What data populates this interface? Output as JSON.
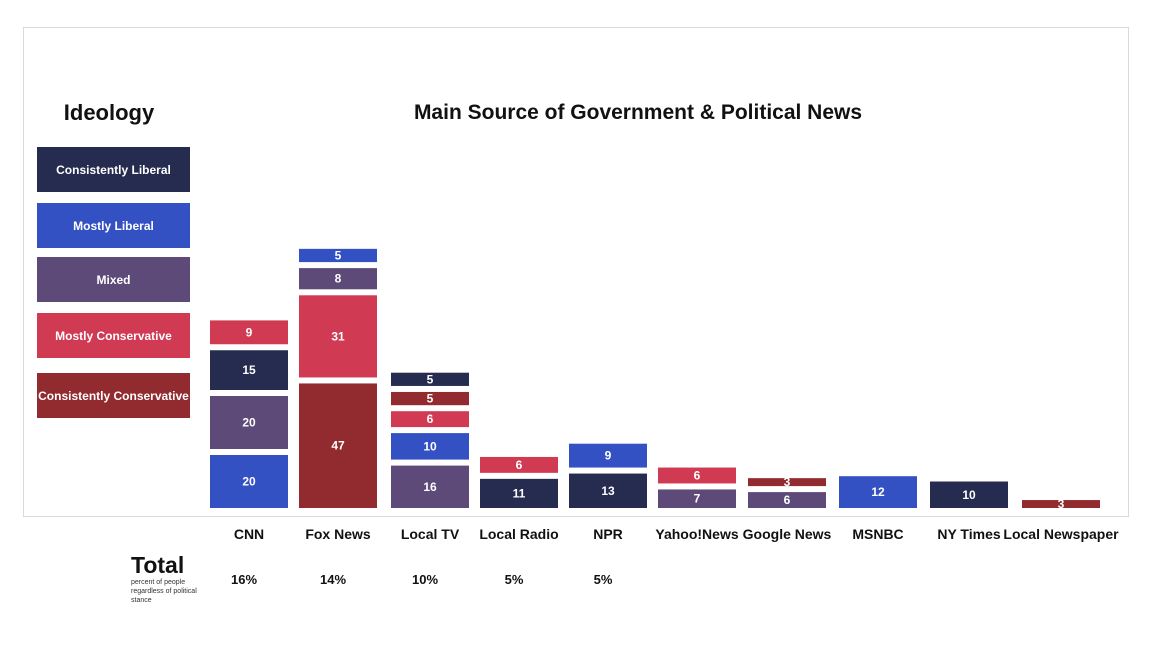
{
  "legend_title": "Ideology",
  "title": "Main Source of Government & Political News",
  "total": {
    "title": "Total",
    "subtitle": "percent of people regardless of political stance"
  },
  "ideologies": [
    {
      "key": "cl",
      "label": "Consistently Liberal",
      "color": "#252c4f"
    },
    {
      "key": "ml",
      "label": "Mostly Liberal",
      "color": "#3451c4"
    },
    {
      "key": "mx",
      "label": "Mixed",
      "color": "#5e4a78"
    },
    {
      "key": "mc",
      "label": "Mostly Conservative",
      "color": "#d03a52"
    },
    {
      "key": "cc",
      "label": "Consistently Conservative",
      "color": "#922b30"
    }
  ],
  "chart_data": {
    "type": "bar",
    "title": "Main Source of Government & Political News",
    "categories": [
      "CNN",
      "Fox News",
      "Local TV",
      "Local Radio",
      "NPR",
      "Yahoo!News",
      "Google News",
      "MSNBC",
      "NY Times",
      "Local Newspaper"
    ],
    "stacks": [
      {
        "category": "CNN",
        "total": "16%",
        "segments": [
          {
            "ideology": "ml",
            "value": 20
          },
          {
            "ideology": "mx",
            "value": 20
          },
          {
            "ideology": "cl",
            "value": 15
          },
          {
            "ideology": "mc",
            "value": 9
          }
        ]
      },
      {
        "category": "Fox News",
        "total": "14%",
        "segments": [
          {
            "ideology": "cc",
            "value": 47
          },
          {
            "ideology": "mc",
            "value": 31
          },
          {
            "ideology": "mx",
            "value": 8
          },
          {
            "ideology": "ml",
            "value": 5
          }
        ]
      },
      {
        "category": "Local TV",
        "total": "10%",
        "segments": [
          {
            "ideology": "mx",
            "value": 16
          },
          {
            "ideology": "ml",
            "value": 10
          },
          {
            "ideology": "mc",
            "value": 6
          },
          {
            "ideology": "cc",
            "value": 5
          },
          {
            "ideology": "cl",
            "value": 5
          }
        ]
      },
      {
        "category": "Local Radio",
        "total": "5%",
        "segments": [
          {
            "ideology": "cl",
            "value": 11
          },
          {
            "ideology": "mc",
            "value": 6
          }
        ]
      },
      {
        "category": "NPR",
        "total": "5%",
        "segments": [
          {
            "ideology": "cl",
            "value": 13
          },
          {
            "ideology": "ml",
            "value": 9
          }
        ]
      },
      {
        "category": "Yahoo!News",
        "total": "",
        "segments": [
          {
            "ideology": "mx",
            "value": 7
          },
          {
            "ideology": "mc",
            "value": 6
          }
        ]
      },
      {
        "category": "Google News",
        "total": "",
        "segments": [
          {
            "ideology": "mx",
            "value": 6
          },
          {
            "ideology": "cc",
            "value": 3
          }
        ]
      },
      {
        "category": "MSNBC",
        "total": "",
        "segments": [
          {
            "ideology": "ml",
            "value": 12
          }
        ]
      },
      {
        "category": "NY Times",
        "total": "",
        "segments": [
          {
            "ideology": "cl",
            "value": 10
          }
        ]
      },
      {
        "category": "Local Newspaper",
        "total": "",
        "segments": [
          {
            "ideology": "cc",
            "value": 3
          }
        ]
      }
    ]
  }
}
